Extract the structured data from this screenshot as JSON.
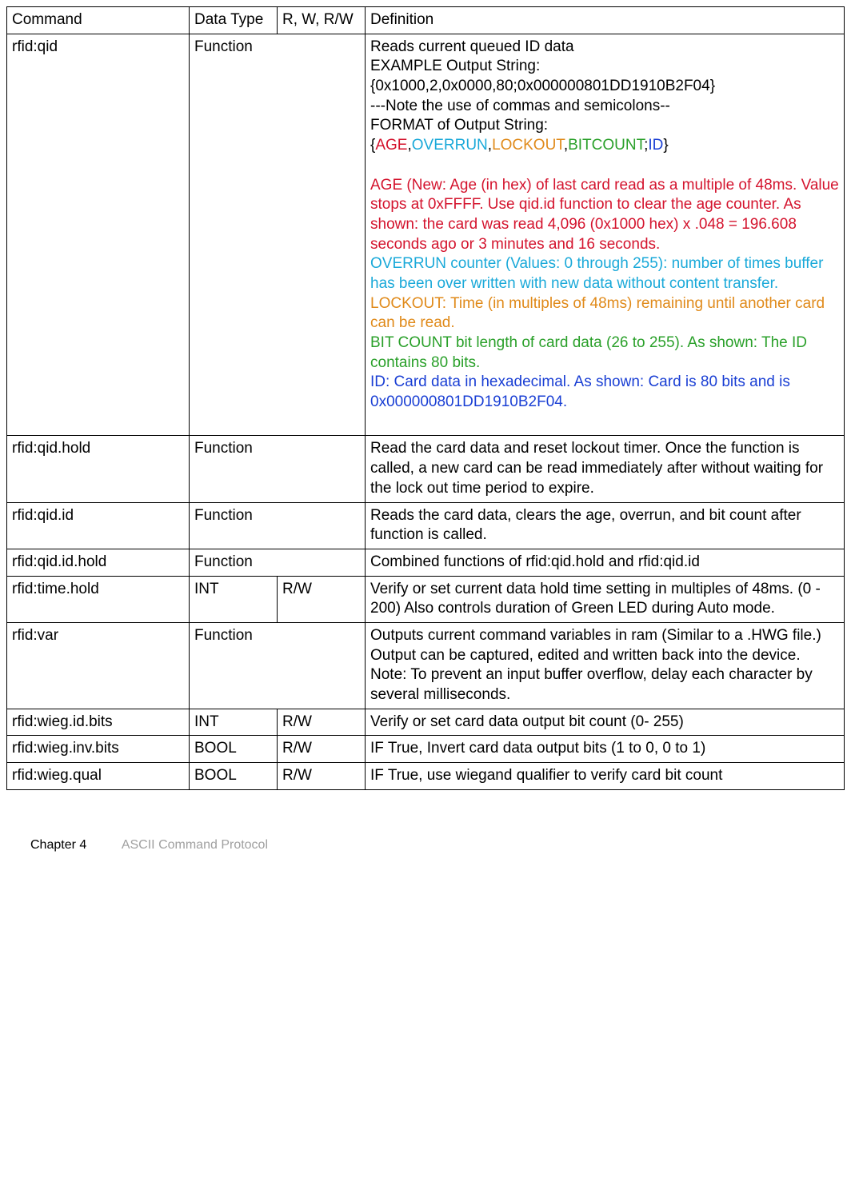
{
  "headers": {
    "command": "Command",
    "datatype": "Data Type",
    "rw": "R, W, R/W",
    "definition": "Definition"
  },
  "colors": {
    "age": "#d4142e",
    "overrun": "#1aa9d9",
    "lockout": "#e08a1a",
    "bitcount": "#2aa02a",
    "id": "#1a3fd4"
  },
  "rows": {
    "qid": {
      "command": "rfid:qid",
      "datatype": "Function",
      "rw": "",
      "def_line1": "Reads current queued ID data",
      "def_line2": "EXAMPLE Output String:",
      "def_line3": "{0x1000,2,0x0000,80;0x000000801DD1910B2F04}",
      "def_note": " ---Note the use of commas and semicolons--",
      "def_format_label": "FORMAT of Output String:",
      "fmt_open": "{",
      "fmt_age": "AGE",
      "fmt_c1": ",",
      "fmt_overrun": "OVERRUN",
      "fmt_c2": ",",
      "fmt_lockout": "LOCKOUT",
      "fmt_c3": ",",
      "fmt_bitcount": "BITCOUNT",
      "fmt_semi": ";",
      "fmt_id": "ID",
      "fmt_close": "}",
      "age_text": "AGE (New: Age (in hex) of last card read as a multiple of 48ms. Value stops at 0xFFFF. Use qid.id function to clear the age counter. As shown: the card was read 4,096 (0x1000 hex) x .048 = 196.608 seconds ago or 3 minutes and 16 seconds.",
      "overrun_text": "OVERRUN counter (Values: 0 through 255): number of times buffer has been over written with new data without content transfer.",
      "lockout_text": "LOCKOUT: Time (in multiples of 48ms) remaining until another card can be read.",
      "bitcount_text": "BIT COUNT bit length of card data (26 to 255). As shown: The ID contains 80 bits.",
      "id_text": "ID: Card data in hexadecimal. As shown: Card is 80 bits and is 0x000000801DD1910B2F04."
    },
    "qid_hold": {
      "command": "rfid:qid.hold",
      "datatype": "Function",
      "rw": "",
      "definition": "Read the card data and reset lockout timer. Once the function is called, a new card can be read immediately after without waiting for the lock out time period to expire."
    },
    "qid_id": {
      "command": "rfid:qid.id",
      "datatype": "Function",
      "rw": "",
      "definition": "Reads the card data, clears the age, overrun, and bit count after function is called."
    },
    "qid_id_hold": {
      "command": "rfid:qid.id.hold",
      "datatype": "Function",
      "rw": "",
      "definition": "Combined functions of rfid:qid.hold and rfid:qid.id"
    },
    "time_hold": {
      "command": "rfid:time.hold",
      "datatype": "INT",
      "rw": "R/W",
      "definition": "Verify or set current data hold time setting in multiples of 48ms. (0 - 200) Also controls duration of Green LED during Auto mode."
    },
    "var": {
      "command": "rfid:var",
      "datatype": "Function",
      "rw": "",
      "definition": "Outputs current command variables in ram (Similar to a .HWG file.) Output can be captured, edited and written back into the device. Note: To prevent an input buffer overflow, delay each character by several milliseconds."
    },
    "wieg_id_bits": {
      "command": "rfid:wieg.id.bits",
      "datatype": "INT",
      "rw": "R/W",
      "definition": "Verify or set card data output bit count (0- 255)"
    },
    "wieg_inv_bits": {
      "command": "rfid:wieg.inv.bits",
      "datatype": "BOOL",
      "rw": "R/W",
      "definition": "IF True, Invert card data output bits (1 to 0, 0 to 1)"
    },
    "wieg_qual": {
      "command": "rfid:wieg.qual",
      "datatype": "BOOL",
      "rw": "R/W",
      "definition": "IF True, use wiegand qualifier to verify card bit count"
    }
  },
  "footer": {
    "chapter": "Chapter 4",
    "title": "ASCII Command Protocol"
  }
}
